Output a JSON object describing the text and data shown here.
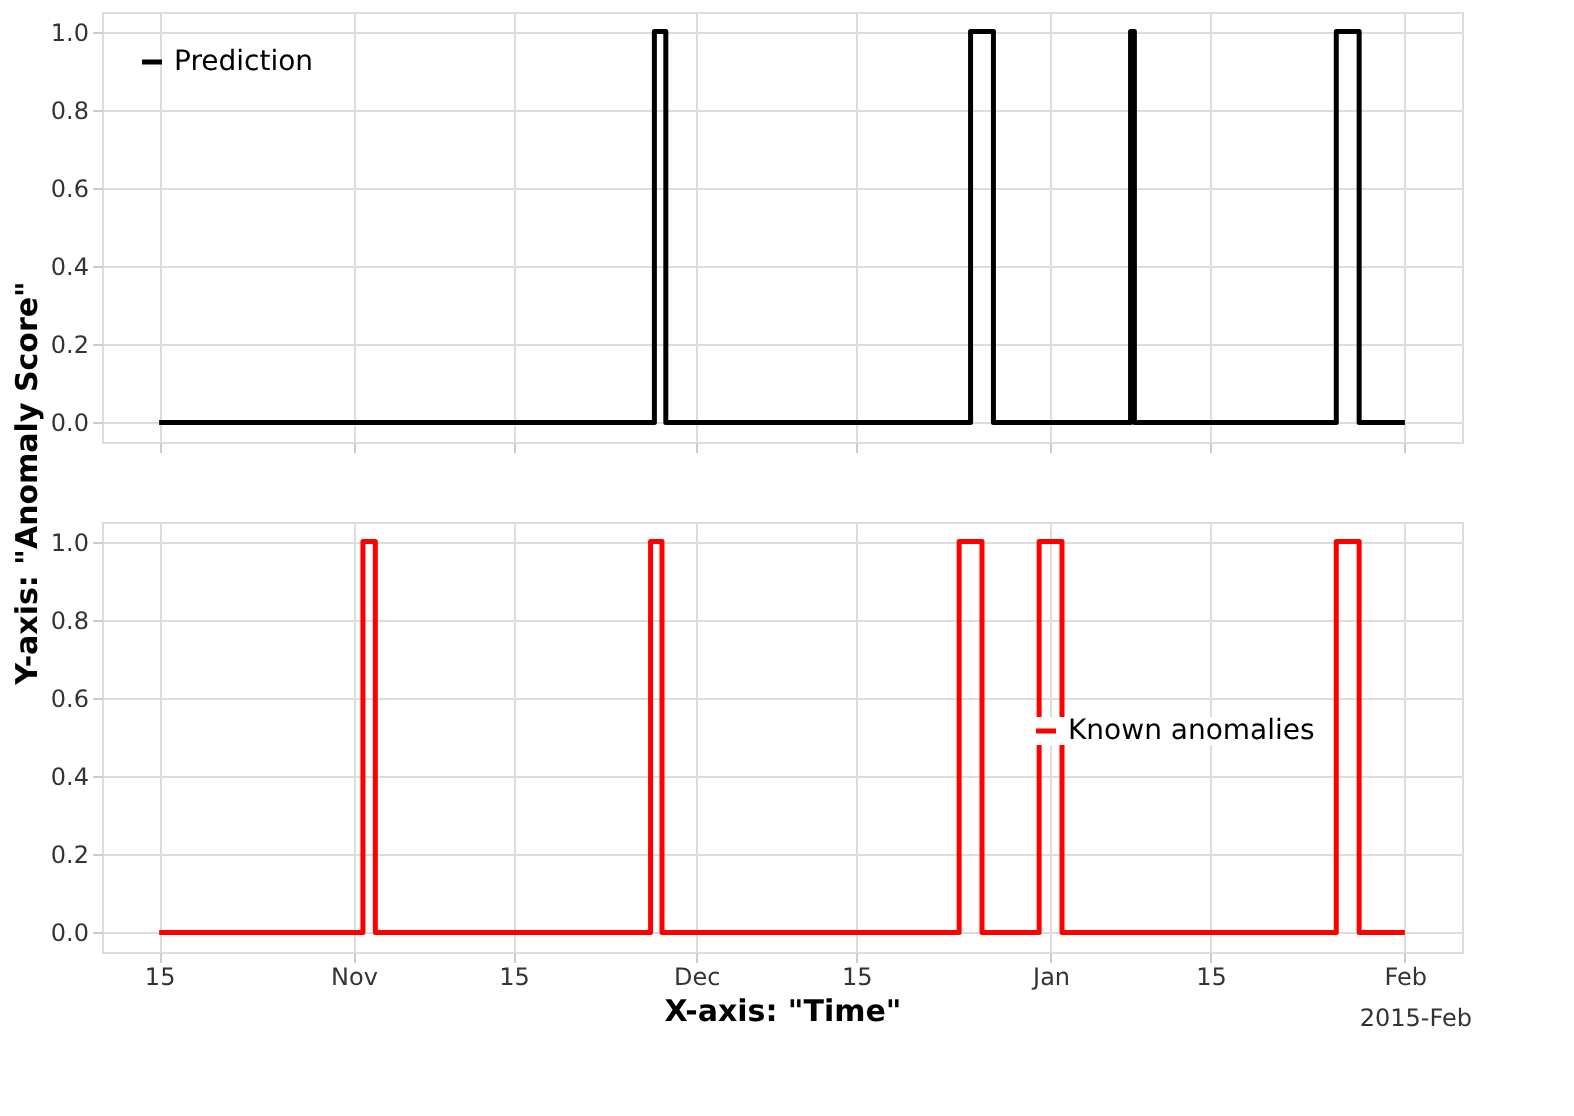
{
  "chart_data": [
    {
      "type": "step",
      "ylabel": "Y-axis: \"Anomaly Score\"",
      "legend": "top left",
      "grid": true,
      "tick_labels": "y",
      "line_style": "solid",
      "marker": "none",
      "xlim": [
        "2014-10-10",
        "2015-02-06"
      ],
      "ylim": [
        -0.05,
        1.05
      ],
      "xticks": [
        {
          "value": "2014-10-15",
          "label": null
        },
        {
          "value": "2014-11-01",
          "label": null
        },
        {
          "value": "2014-11-15",
          "label": null
        },
        {
          "value": "2014-12-01",
          "label": null
        },
        {
          "value": "2014-12-15",
          "label": null
        },
        {
          "value": "2015-01-01",
          "label": null
        },
        {
          "value": "2015-01-15",
          "label": null
        },
        {
          "value": "2015-02-01",
          "label": null
        }
      ],
      "yticks": [
        {
          "value": 0,
          "label": "0.0"
        },
        {
          "value": 0.2,
          "label": "0.2"
        },
        {
          "value": 0.4,
          "label": "0.4"
        },
        {
          "value": 0.6,
          "label": "0.6"
        },
        {
          "value": 0.8,
          "label": "0.8"
        },
        {
          "value": 1,
          "label": "1.0"
        }
      ],
      "series": [
        {
          "name": "Prediction",
          "color": "#000000",
          "x": [
            "2014-10-15",
            "2014-11-27T08:00",
            "2014-11-28T08:00",
            "2014-12-25",
            "2014-12-27",
            "2015-01-08",
            "2015-01-08T08:00",
            "2015-01-26",
            "2015-01-28",
            "2015-02-01"
          ],
          "values": [
            0,
            1,
            0,
            1,
            0,
            1,
            0,
            1,
            0,
            0
          ]
        }
      ]
    },
    {
      "type": "step",
      "xlabel": "X-axis: \"Time\"",
      "legend": "right",
      "grid": true,
      "line_style": "solid",
      "marker": "none",
      "annotations": [
        "2015-Feb"
      ],
      "xlim": [
        "2014-10-10",
        "2015-02-06"
      ],
      "ylim": [
        -0.05,
        1.05
      ],
      "xticks": [
        {
          "value": "2014-10-15",
          "label": "15"
        },
        {
          "value": "2014-11-01",
          "label": "Nov"
        },
        {
          "value": "2014-11-15",
          "label": "15"
        },
        {
          "value": "2014-12-01",
          "label": "Dec"
        },
        {
          "value": "2014-12-15",
          "label": "15"
        },
        {
          "value": "2015-01-01",
          "label": "Jan"
        },
        {
          "value": "2015-01-15",
          "label": "15"
        },
        {
          "value": "2015-02-01",
          "label": "Feb"
        }
      ],
      "yticks": [
        {
          "value": 0,
          "label": "0.0"
        },
        {
          "value": 0.2,
          "label": "0.2"
        },
        {
          "value": 0.4,
          "label": "0.4"
        },
        {
          "value": 0.6,
          "label": "0.6"
        },
        {
          "value": 0.8,
          "label": "0.8"
        },
        {
          "value": 1,
          "label": "1.0"
        }
      ],
      "series": [
        {
          "name": "Known anomalies",
          "color": "#ff0000",
          "x": [
            "2014-10-15",
            "2014-11-01T20:00",
            "2014-11-02T22:00",
            "2014-11-27",
            "2014-11-28",
            "2014-12-24",
            "2014-12-26",
            "2014-12-31",
            "2015-01-02",
            "2015-01-26",
            "2015-01-28",
            "2015-02-01"
          ],
          "values": [
            0,
            1,
            0,
            1,
            0,
            1,
            0,
            1,
            0,
            1,
            0,
            0
          ]
        }
      ]
    }
  ]
}
